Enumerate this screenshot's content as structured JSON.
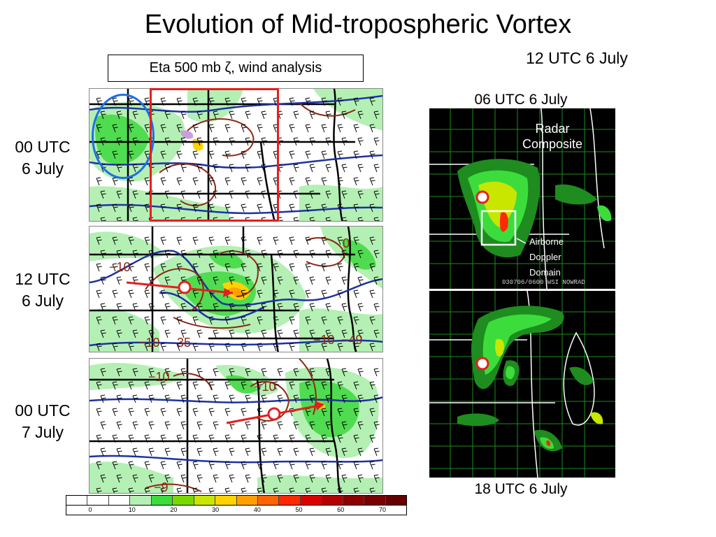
{
  "title": "Evolution of Mid-tropospheric Vortex",
  "subtitle": "Eta 500 mb ζ, wind analysis",
  "labels": {
    "top_right_time": "12 UTC 6 July",
    "radar_top_time": "06 UTC 6 July",
    "radar_bottom_time": "18 UTC 6 July"
  },
  "panels": [
    {
      "time_line1": "00 UTC",
      "time_line2": "6 July",
      "contour_labels": []
    },
    {
      "time_line1": "12 UTC",
      "time_line2": "6 July",
      "contour_labels": [
        "−10",
        "0",
        "−10",
        "35",
        "−10",
        "−49"
      ]
    },
    {
      "time_line1": "00 UTC",
      "time_line2": "7 July",
      "contour_labels": [
        "−10",
        "−10",
        "−9"
      ]
    }
  ],
  "radar": {
    "label_line1": "Radar",
    "label_line2": "Composite",
    "domain_line1": "Airborne",
    "domain_line2": "Doppler",
    "domain_line3": "Domain",
    "stamp": "030706/0600 WSI NOWRAD"
  },
  "colorbar": {
    "ticks": [
      "0",
      "10",
      "20",
      "30",
      "40",
      "50",
      "60",
      "70"
    ],
    "colors": [
      "#ffffff",
      "#ffffff",
      "#ffffff",
      "#b4f0b4",
      "#3cdc3c",
      "#78d800",
      "#c8e600",
      "#ffd200",
      "#ffa000",
      "#ff6400",
      "#ff2800",
      "#dc0000",
      "#b40000",
      "#8c0000",
      "#780000",
      "#640000"
    ]
  },
  "colors": {
    "vortex_outline_blue": "#1e6ee6",
    "region_box_red": "#e61e1e",
    "track_arrow": "#e61e1e",
    "contour_blue": "#1e32a0",
    "contour_brown": "#8c2814",
    "border_black": "#000000",
    "vorticity_light": "#b4f0b4",
    "vorticity_mid": "#50dc50",
    "vorticity_high": "#ffd200"
  }
}
